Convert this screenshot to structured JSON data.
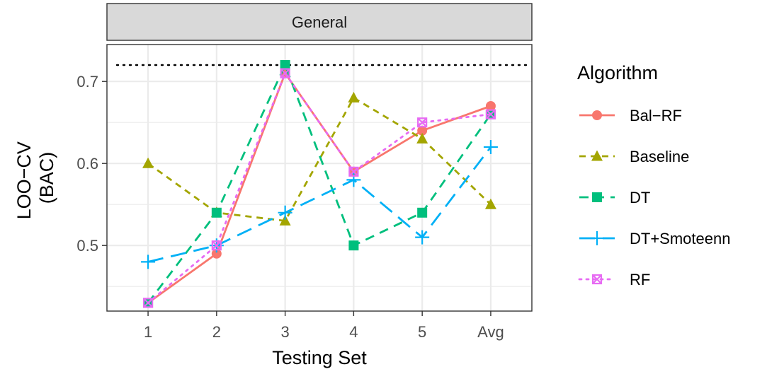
{
  "chart_data": {
    "type": "line",
    "facet_label": "General",
    "categories": [
      "1",
      "2",
      "3",
      "4",
      "5",
      "Avg"
    ],
    "xlabel": "Testing Set",
    "ylabel_lines": [
      "LOO−CV",
      "(BAC)"
    ],
    "ylim": [
      0.42,
      0.745
    ],
    "yticks": [
      0.5,
      0.6,
      0.7
    ],
    "ytick_labels": [
      "0.5",
      "0.6",
      "0.7"
    ],
    "reference_line": 0.72,
    "grid": true,
    "legend_position": "right",
    "legend_title": "Algorithm",
    "series": [
      {
        "name": "Bal−RF",
        "color": "#F8766D",
        "dash": "solid",
        "marker": "circle",
        "values": [
          0.43,
          0.49,
          0.71,
          0.59,
          0.64,
          0.67
        ]
      },
      {
        "name": "Baseline",
        "color": "#A3A500",
        "dash": "short-dash",
        "marker": "triangle",
        "values": [
          0.6,
          0.54,
          0.53,
          0.68,
          0.63,
          0.55
        ]
      },
      {
        "name": "DT",
        "color": "#00BF7D",
        "dash": "dash",
        "marker": "square",
        "values": [
          0.43,
          0.54,
          0.72,
          0.5,
          0.54,
          0.66
        ]
      },
      {
        "name": "DT+Smoteenn",
        "color": "#00B0F6",
        "dash": "long-dash",
        "marker": "plus",
        "values": [
          0.48,
          0.5,
          0.54,
          0.58,
          0.51,
          0.62
        ]
      },
      {
        "name": "RF",
        "color": "#E76BF3",
        "dash": "dotted",
        "marker": "square-x",
        "values": [
          0.43,
          0.5,
          0.71,
          0.59,
          0.65,
          0.66
        ]
      }
    ]
  }
}
